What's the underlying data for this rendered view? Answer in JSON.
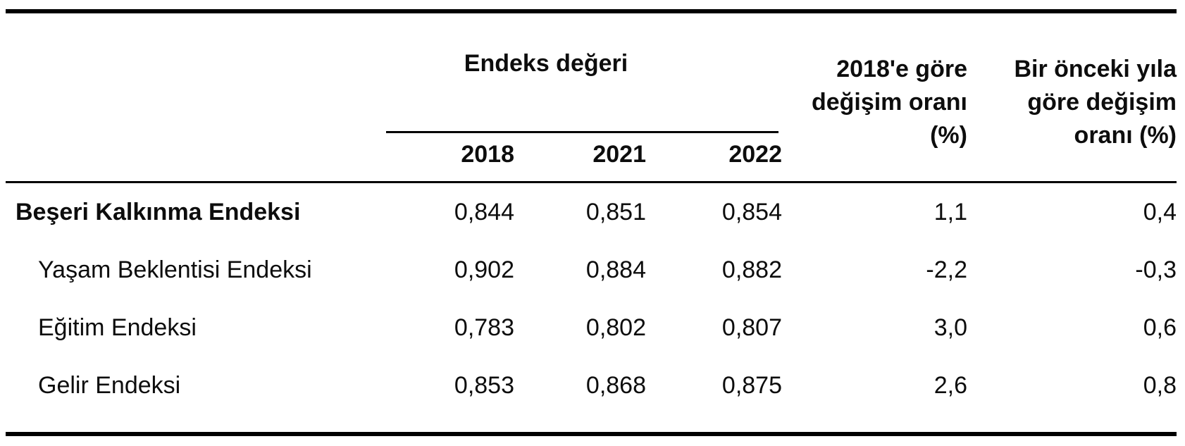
{
  "table": {
    "group_header": "Endeks değeri",
    "year_columns": [
      "2018",
      "2021",
      "2022"
    ],
    "change_columns": [
      {
        "label": "2018'e göre değişim oranı (%)",
        "lines": [
          "2018'e göre",
          "değişim oranı",
          "(%)"
        ]
      },
      {
        "label": "Bir önceki yıla göre değişim oranı (%)",
        "lines": [
          "Bir önceki yıla",
          "göre değişim",
          "oranı (%)"
        ]
      }
    ],
    "rows": [
      {
        "label": "Beşeri Kalkınma Endeksi",
        "values": [
          "0,844",
          "0,851",
          "0,854",
          "1,1",
          "0,4"
        ]
      },
      {
        "label": "Yaşam Beklentisi Endeksi",
        "values": [
          "0,902",
          "0,884",
          "0,882",
          "-2,2",
          "-0,3"
        ]
      },
      {
        "label": "Eğitim Endeksi",
        "values": [
          "0,783",
          "0,802",
          "0,807",
          "3,0",
          "0,6"
        ]
      },
      {
        "label": "Gelir Endeksi",
        "values": [
          "0,853",
          "0,868",
          "0,875",
          "2,6",
          "0,8"
        ]
      }
    ]
  },
  "chart_data": {
    "type": "table",
    "title": "",
    "column_groups": [
      {
        "label": "Endeks değeri",
        "columns": [
          "2018",
          "2021",
          "2022"
        ]
      }
    ],
    "columns": [
      "",
      "2018",
      "2021",
      "2022",
      "2018'e göre değişim oranı (%)",
      "Bir önceki yıla göre değişim oranı (%)"
    ],
    "rows": [
      [
        "Beşeri Kalkınma Endeksi",
        0.844,
        0.851,
        0.854,
        1.1,
        0.4
      ],
      [
        "Yaşam Beklentisi Endeksi",
        0.902,
        0.884,
        0.882,
        -2.2,
        -0.3
      ],
      [
        "Eğitim Endeksi",
        0.783,
        0.802,
        0.807,
        3.0,
        0.6
      ],
      [
        "Gelir Endeksi",
        0.853,
        0.868,
        0.875,
        2.6,
        0.8
      ]
    ],
    "number_format": "comma-decimal",
    "layout": {
      "grid": "off",
      "rules": [
        "thick-top",
        "thin-under-header",
        "thick-bottom"
      ]
    }
  },
  "colors": {
    "text": "#0d0d0d",
    "rule": "#000000",
    "background": "#ffffff"
  }
}
